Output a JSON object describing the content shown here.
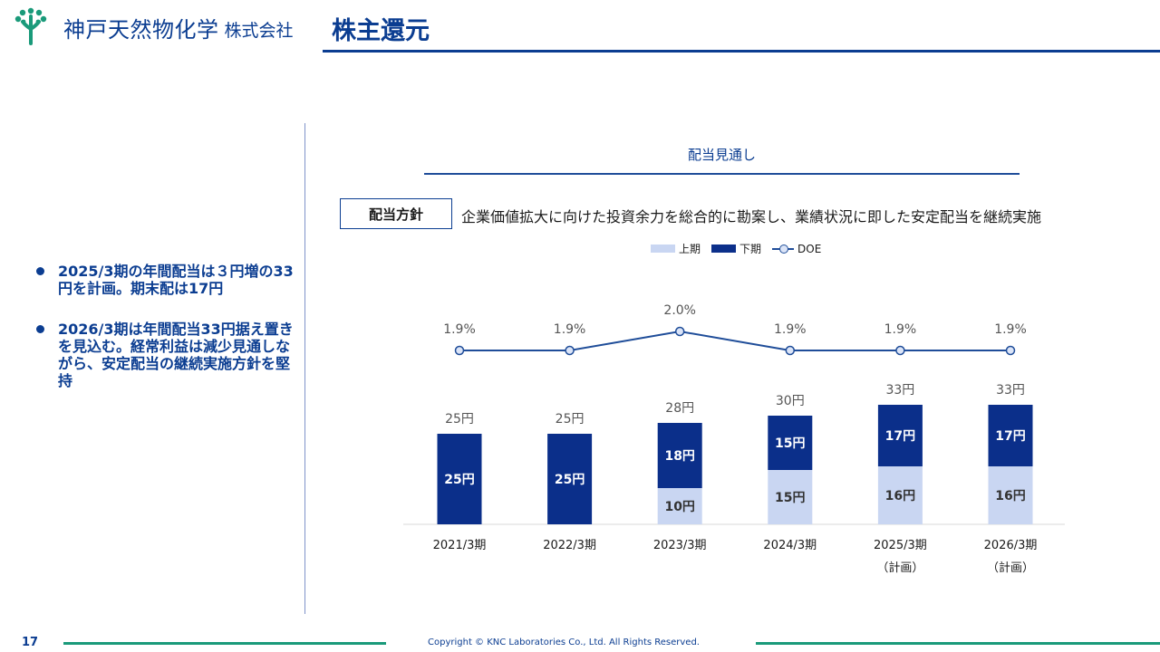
{
  "header": {
    "logo_name": "神戸天然物化学",
    "logo_suffix": "株式会社",
    "page_title": "株主還元"
  },
  "bullets": [
    "2025/3期の年間配当は３円増の33円を計画。期末配は17円",
    "2026/3期は年間配当33円据え置きを見込む。経常利益は減少見通しながら、安定配当の継続実施方針を堅持"
  ],
  "chart_heading": "配当見通し",
  "policy": {
    "label": "配当方針",
    "text": "企業価値拡大に向けた投資余力を総合的に勘案し、業績状況に即した安定配当を継続実施"
  },
  "legend": {
    "first_half": "上期",
    "second_half": "下期",
    "doe": "DOE"
  },
  "colors": {
    "brand": "#0b3d91",
    "first_half": "#c9d6f2",
    "second_half": "#0b2f8a",
    "doe_line": "#1f4d99",
    "footer_accent": "#1a9a7a"
  },
  "chart_data": {
    "type": "bar",
    "stacked": true,
    "categories": [
      "2021/3期",
      "2022/3期",
      "2023/3期",
      "2024/3期",
      "2025/3期",
      "2026/3期"
    ],
    "category_sublabels": [
      "",
      "",
      "",
      "",
      "（計画）",
      "（計画）"
    ],
    "series": [
      {
        "name": "上期",
        "values": [
          0,
          0,
          10,
          15,
          16,
          16
        ],
        "labels": [
          "",
          "",
          "10円",
          "15円",
          "16円",
          "16円"
        ]
      },
      {
        "name": "下期",
        "values": [
          25,
          25,
          18,
          15,
          17,
          17
        ],
        "labels": [
          "25円",
          "25円",
          "18円",
          "15円",
          "17円",
          "17円"
        ]
      }
    ],
    "totals": [
      25,
      25,
      28,
      30,
      33,
      33
    ],
    "total_labels": [
      "25円",
      "25円",
      "28円",
      "30円",
      "33円",
      "33円"
    ],
    "line_series": {
      "name": "DOE",
      "values": [
        1.9,
        1.9,
        2.0,
        1.9,
        1.9,
        1.9
      ],
      "labels": [
        "1.9%",
        "1.9%",
        "2.0%",
        "1.9%",
        "1.9%",
        "1.9%"
      ]
    },
    "legend_position": "top",
    "grid": false
  },
  "footer": {
    "page_number": "17",
    "copyright": "Copyright © KNC Laboratories Co., Ltd. All Rights Reserved."
  }
}
